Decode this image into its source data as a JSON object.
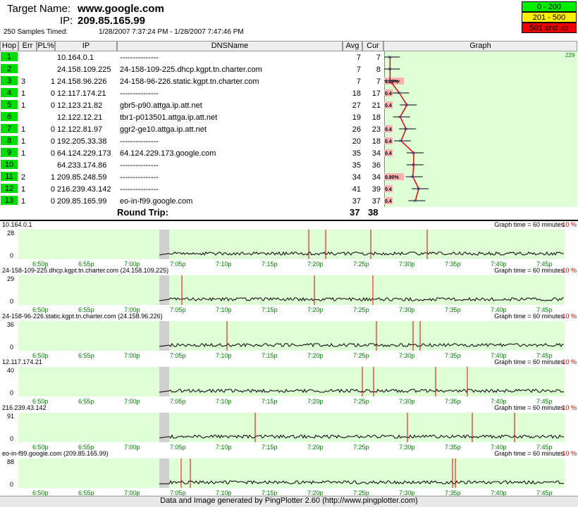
{
  "header": {
    "target_label": "Target Name:",
    "target": "www.google.com",
    "ip_label": "IP:",
    "ip": "209.85.165.99",
    "samples": "250 Samples Timed:",
    "range": "1/28/2007 7:37:24 PM - 1/28/2007 7:47:46 PM"
  },
  "legend": [
    {
      "label": "0 - 200",
      "color": "#00ee00"
    },
    {
      "label": "201 - 500",
      "color": "#ffee00"
    },
    {
      "label": "501 and up",
      "color": "#ee0000"
    }
  ],
  "columns": [
    "Hop",
    "Err",
    "PL%",
    "IP",
    "DNSName",
    "Avg",
    "Cur",
    "Graph"
  ],
  "graph_max": "229",
  "hops": [
    {
      "hop": "1",
      "err": "",
      "pl": "",
      "ip": "10.164.0.1",
      "dns": "---------------",
      "avg": "7",
      "cur": "7",
      "plbox": ""
    },
    {
      "hop": "2",
      "err": "",
      "pl": "",
      "ip": "24.158.109.225",
      "dns": "24-158-109-225.dhcp.kgpt.tn.charter.com",
      "avg": "7",
      "cur": "8",
      "plbox": ""
    },
    {
      "hop": "3",
      "err": "3",
      "pl": "1",
      "ip": "24.158.96.226",
      "dns": "24-158-96-226.static.kgpt.tn.charter.com",
      "avg": "7",
      "cur": "7",
      "plbox": "1.20%"
    },
    {
      "hop": "4",
      "err": "1",
      "pl": "0",
      "ip": "12.117.174.21",
      "dns": "---------------",
      "avg": "18",
      "cur": "17",
      "plbox": "0.4"
    },
    {
      "hop": "5",
      "err": "1",
      "pl": "0",
      "ip": "12.123.21.82",
      "dns": "gbr5-p90.attga.ip.att.net",
      "avg": "27",
      "cur": "21",
      "plbox": "0.4"
    },
    {
      "hop": "6",
      "err": "",
      "pl": "",
      "ip": "12.122.12.21",
      "dns": "tbr1-p013501.attga.ip.att.net",
      "avg": "19",
      "cur": "18",
      "plbox": ""
    },
    {
      "hop": "7",
      "err": "1",
      "pl": "0",
      "ip": "12.122.81.97",
      "dns": "ggr2-ge10.attga.ip.att.net",
      "avg": "26",
      "cur": "23",
      "plbox": "0.4"
    },
    {
      "hop": "8",
      "err": "1",
      "pl": "0",
      "ip": "192.205.33.38",
      "dns": "---------------",
      "avg": "20",
      "cur": "18",
      "plbox": "0.4"
    },
    {
      "hop": "9",
      "err": "1",
      "pl": "0",
      "ip": "64.124.229.173",
      "dns": "64.124.229.173.google.com",
      "avg": "35",
      "cur": "34",
      "plbox": "0.4"
    },
    {
      "hop": "10",
      "err": "",
      "pl": "",
      "ip": "64.233.174.86",
      "dns": "---------------",
      "avg": "35",
      "cur": "36",
      "plbox": ""
    },
    {
      "hop": "11",
      "err": "2",
      "pl": "1",
      "ip": "209.85.248.59",
      "dns": "---------------",
      "avg": "34",
      "cur": "34",
      "plbox": "0.80%"
    },
    {
      "hop": "12",
      "err": "1",
      "pl": "0",
      "ip": "216.239.43.142",
      "dns": "---------------",
      "avg": "41",
      "cur": "39",
      "plbox": "0.4"
    },
    {
      "hop": "13",
      "err": "1",
      "pl": "0",
      "ip": "209.85.165.99",
      "dns": "eo-in-f99.google.com",
      "avg": "37",
      "cur": "37",
      "plbox": "0.4"
    }
  ],
  "roundtrip": {
    "label": "Round Trip:",
    "avg": "37",
    "cur": "38"
  },
  "time_ticks": [
    "6:50p",
    "6:55p",
    "7:00p",
    "7:05p",
    "7:10p",
    "7:15p",
    "7:20p",
    "7:25p",
    "7:30p",
    "7:35p",
    "7:40p",
    "7:45p"
  ],
  "panels": [
    {
      "title": "10.164.0.1",
      "time": "Graph time = 60 minutes",
      "pct": "10 %",
      "ymax": "28",
      "ymin": "0"
    },
    {
      "title": "24-158-109-225.dhcp.kgpt.tn.charter.com (24.158.109.225)",
      "time": "Graph time = 60 minutes",
      "pct": "10 %",
      "ymax": "29",
      "ymin": "0"
    },
    {
      "title": "24-158-96-226.static.kgpt.tn.charter.com (24.158.96.226)",
      "time": "Graph time = 60 minutes",
      "pct": "10 %",
      "ymax": "36",
      "ymin": "0"
    },
    {
      "title": "12.117.174.21",
      "time": "Graph time = 60 minutes",
      "pct": "10 %",
      "ymax": "40",
      "ymin": "0"
    },
    {
      "title": "216.239.43.142",
      "time": "Graph time = 60 minutes",
      "pct": "10 %",
      "ymax": "91",
      "ymin": "0"
    },
    {
      "title": "eo-in-f99.google.com (209.85.165.99)",
      "time": "Graph time = 60 minutes",
      "pct": "10 %",
      "ymax": "88",
      "ymin": "0"
    }
  ],
  "footer": "Data and Image generated by PingPlotter 2.60 (http://www.pingplotter.com)"
}
